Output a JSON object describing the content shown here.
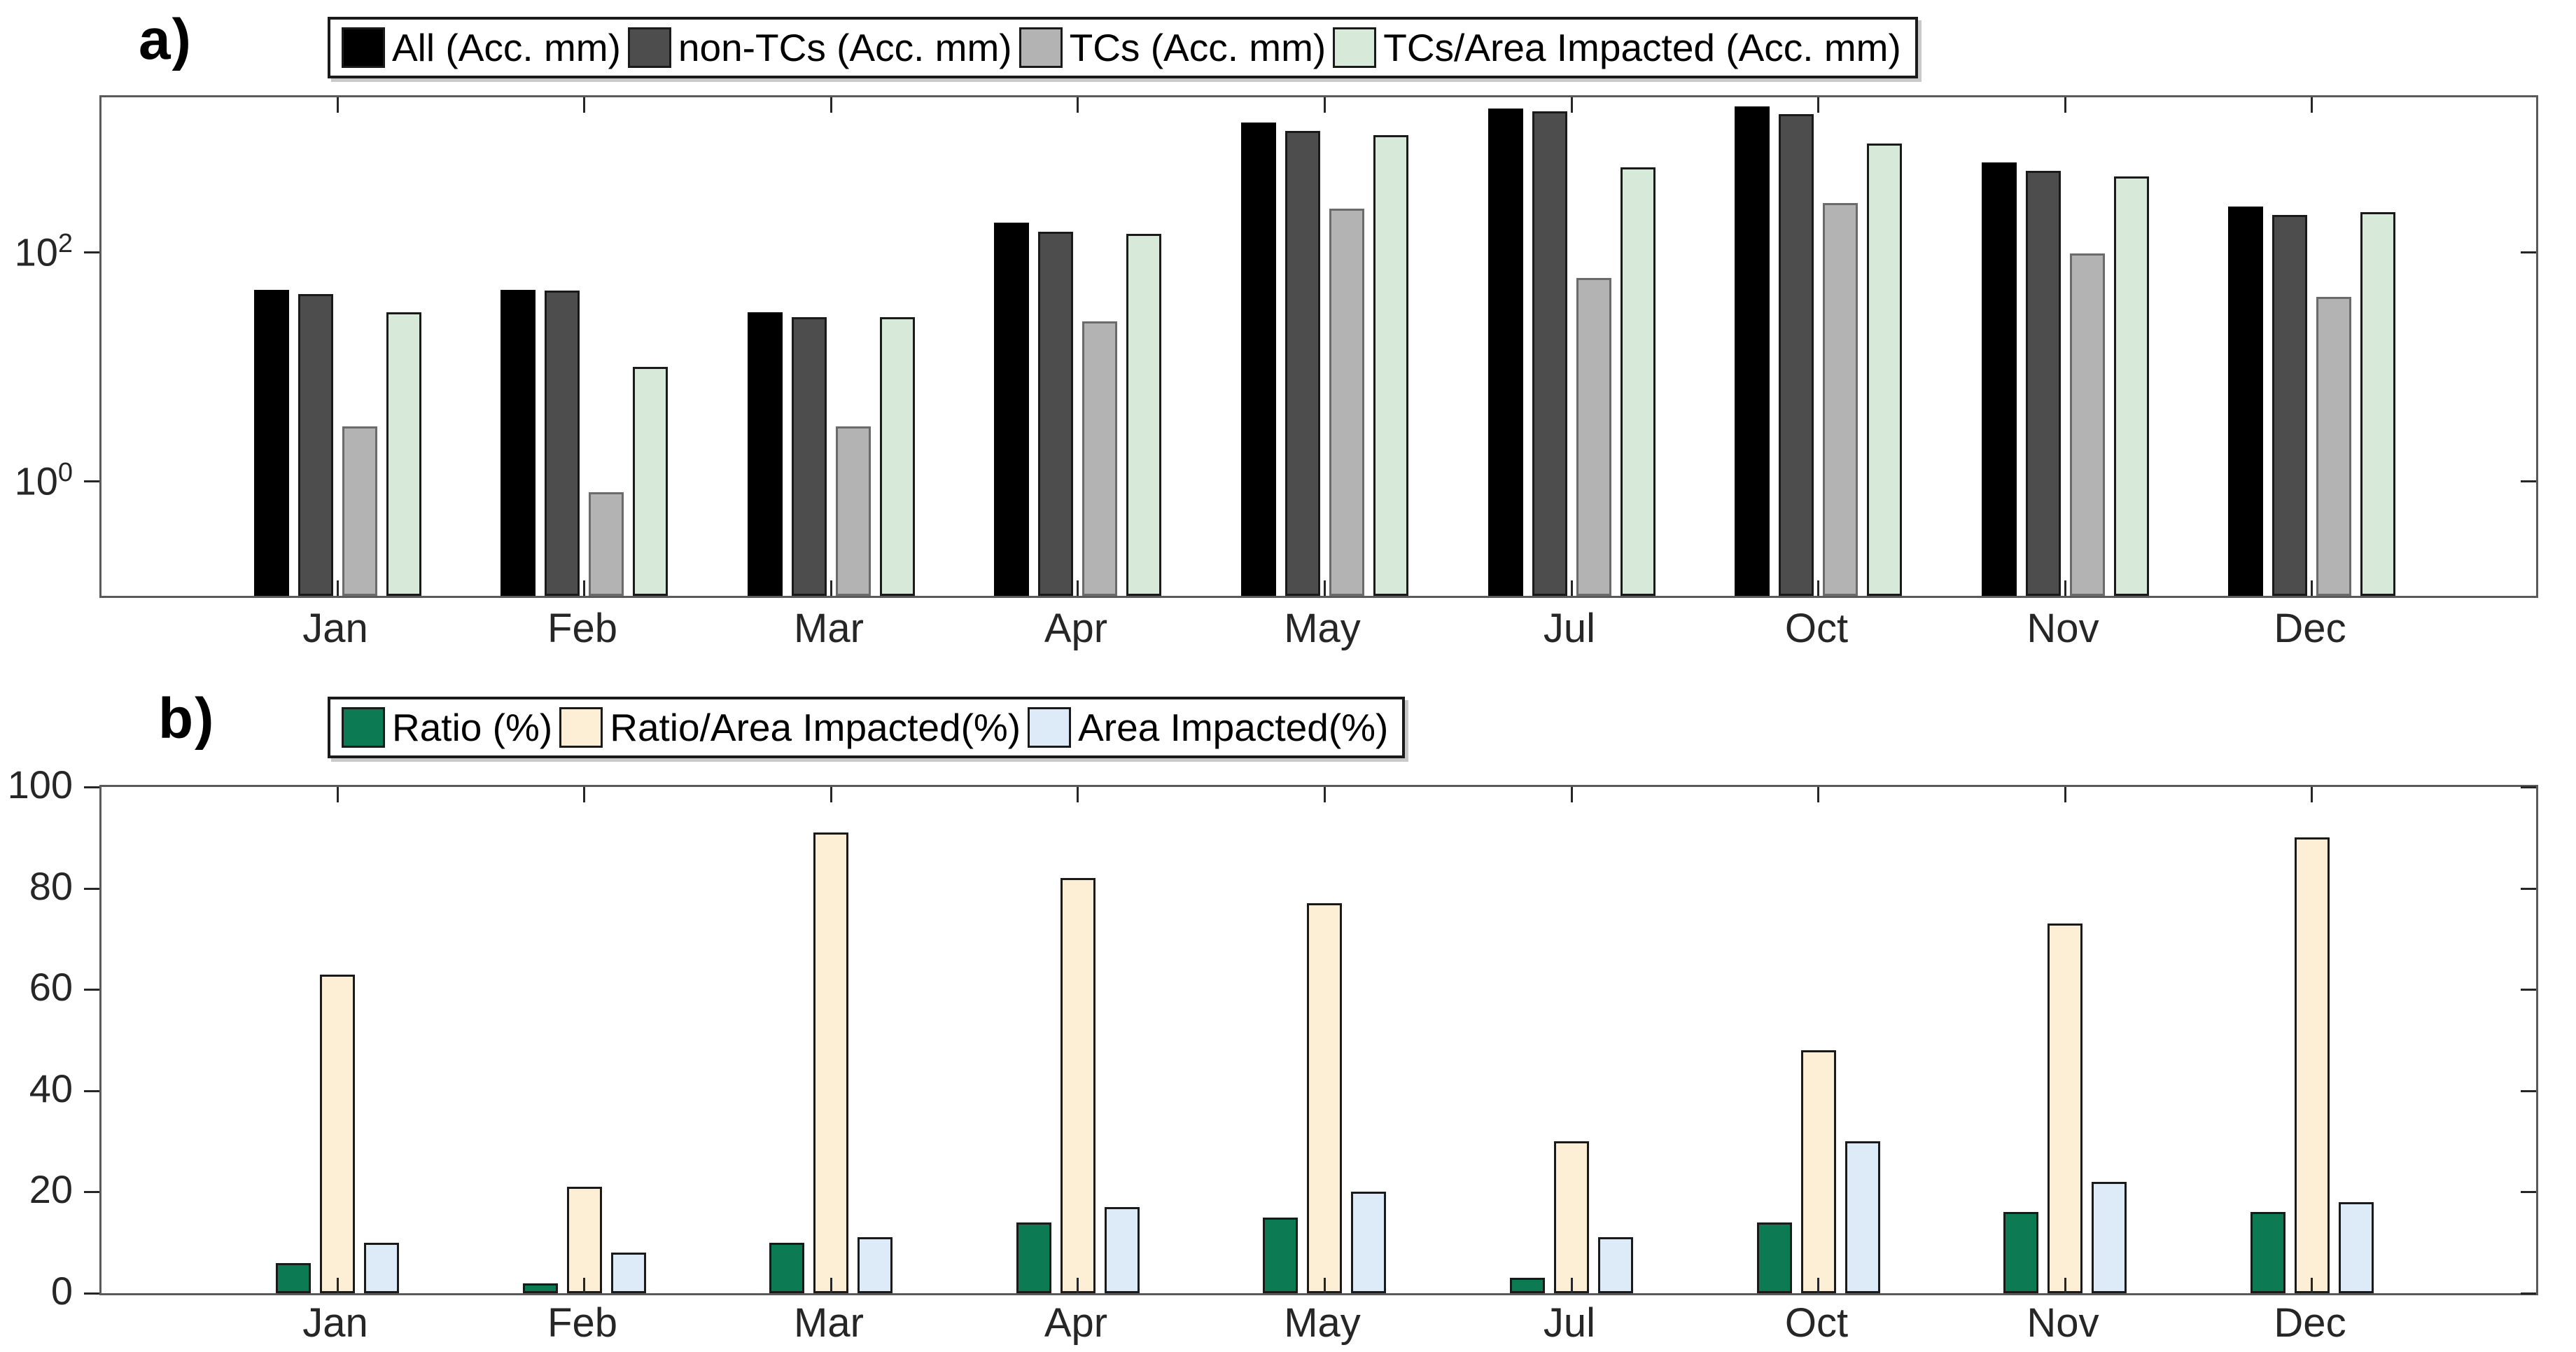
{
  "figure": {
    "background": "#ffffff",
    "axis_color": "#262626",
    "spine_color": "#5a5a5a"
  },
  "chart_data": [
    {
      "id": "a",
      "type": "bar",
      "panel_label": "a)",
      "scale": "log",
      "title": "",
      "xlabel": "",
      "ylabel": "",
      "categories": [
        "Jan",
        "Feb",
        "Mar",
        "Apr",
        "May",
        "Jul",
        "Oct",
        "Nov",
        "Dec"
      ],
      "series": [
        {
          "name": "All (Acc. mm)",
          "color": "#000000",
          "edge": "#000000",
          "values": [
            47,
            47,
            30,
            180,
            1350,
            1800,
            1870,
            610,
            250
          ]
        },
        {
          "name": "non-TCs (Acc. mm)",
          "color": "#4d4d4d",
          "edge": "#1a1a1a",
          "values": [
            43,
            46,
            27,
            150,
            1150,
            1700,
            1600,
            510,
            210
          ]
        },
        {
          "name": "TCs (Acc. mm)",
          "color": "#b3b3b3",
          "edge": "#6b6b6b",
          "values": [
            3,
            0.8,
            3,
            25,
            240,
            60,
            270,
            98,
            41
          ]
        },
        {
          "name": "TCs/Area Impacted (Acc. mm)",
          "color": "#d7ead9",
          "edge": "#1a1a1a",
          "values": [
            30,
            10,
            27,
            145,
            1050,
            550,
            890,
            460,
            225
          ]
        }
      ],
      "ylim": [
        0.1,
        2250
      ],
      "yticks": [
        {
          "value": 1,
          "base": "10",
          "exp": "0"
        },
        {
          "value": 100,
          "base": "10",
          "exp": "2"
        }
      ],
      "legend_position": "top",
      "grid": false
    },
    {
      "id": "b",
      "type": "bar",
      "panel_label": "b)",
      "scale": "linear",
      "title": "",
      "xlabel": "",
      "ylabel": "",
      "categories": [
        "Jan",
        "Feb",
        "Mar",
        "Apr",
        "May",
        "Jul",
        "Oct",
        "Nov",
        "Dec"
      ],
      "series": [
        {
          "name": "Ratio (%)",
          "color": "#0c7a53",
          "edge": "#1a1a1a",
          "values": [
            6,
            2,
            10,
            14,
            15,
            3,
            14,
            16,
            16
          ]
        },
        {
          "name": "Ratio/Area Impacted(%)",
          "color": "#fcefd5",
          "edge": "#1a1a1a",
          "values": [
            63,
            21,
            91,
            82,
            77,
            30,
            48,
            73,
            90
          ]
        },
        {
          "name": "Area Impacted(%)",
          "color": "#ddebf8",
          "edge": "#1a1a1a",
          "values": [
            10,
            8,
            11,
            17,
            20,
            11,
            30,
            22,
            18
          ]
        }
      ],
      "ylim": [
        0,
        100
      ],
      "yticks": [
        0,
        20,
        40,
        60,
        80,
        100
      ],
      "legend_position": "top",
      "grid": false
    }
  ]
}
